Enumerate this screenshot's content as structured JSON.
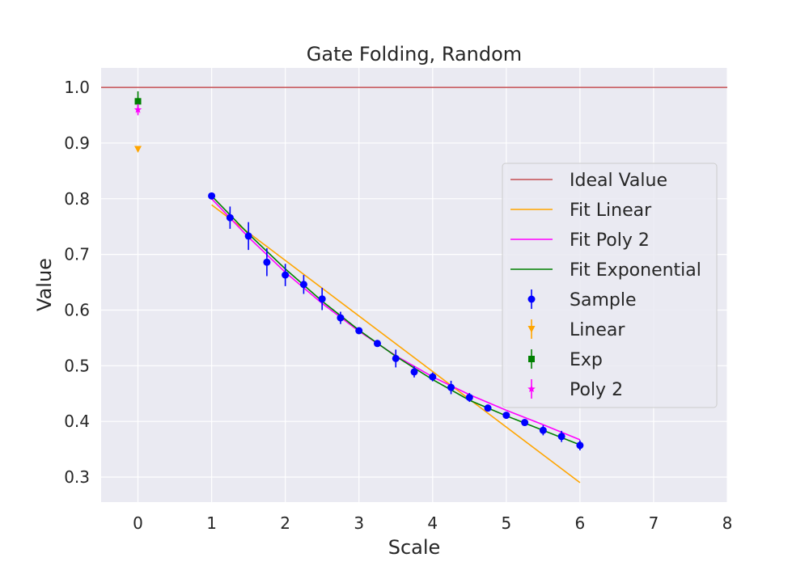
{
  "chart_data": {
    "type": "scatter",
    "title": "Gate Folding, Random",
    "xlabel": "Scale",
    "ylabel": "Value",
    "xlim": [
      -0.5,
      8
    ],
    "ylim": [
      0.255,
      1.035
    ],
    "xticks": [
      0,
      1,
      2,
      3,
      4,
      5,
      6,
      7,
      8
    ],
    "xtick_labels": [
      "0",
      "1",
      "2",
      "3",
      "4",
      "5",
      "6",
      "7",
      "8"
    ],
    "yticks": [
      0.3,
      0.4,
      0.5,
      0.6,
      0.7,
      0.8,
      0.9,
      1.0
    ],
    "ytick_labels": [
      "0.3",
      "0.4",
      "0.5",
      "0.6",
      "0.7",
      "0.8",
      "0.9",
      "1.0"
    ],
    "grid": true,
    "legend_position": "center-right",
    "ideal_value": {
      "name": "Ideal Value",
      "y": 1.0,
      "color": "#c44e52"
    },
    "fit_lines": [
      {
        "name": "Fit Linear",
        "color": "#ffa500",
        "x": [
          1,
          6
        ],
        "y": [
          0.789,
          0.29
        ]
      },
      {
        "name": "Fit Poly 2",
        "color": "#ff00ff",
        "x": [
          1,
          1.5,
          2,
          2.5,
          3,
          3.5,
          4,
          4.5,
          5,
          5.5,
          6
        ],
        "y": [
          0.8,
          0.731,
          0.668,
          0.612,
          0.562,
          0.518,
          0.48,
          0.448,
          0.42,
          0.394,
          0.367
        ]
      },
      {
        "name": "Fit Exponential",
        "color": "#008000",
        "x": [
          1,
          1.5,
          2,
          2.5,
          3,
          3.5,
          4,
          4.5,
          5,
          5.5,
          6
        ],
        "y": [
          0.805,
          0.737,
          0.674,
          0.616,
          0.564,
          0.517,
          0.475,
          0.438,
          0.41,
          0.384,
          0.358
        ]
      }
    ],
    "sample": {
      "name": "Sample",
      "color": "#0000ff",
      "x": [
        1,
        1.25,
        1.5,
        1.75,
        2,
        2.25,
        2.5,
        2.75,
        3,
        3.25,
        3.5,
        3.75,
        4,
        4.25,
        4.5,
        4.75,
        5,
        5.25,
        5.5,
        5.75,
        6
      ],
      "y": [
        0.805,
        0.766,
        0.733,
        0.686,
        0.663,
        0.646,
        0.62,
        0.586,
        0.563,
        0.54,
        0.513,
        0.489,
        0.48,
        0.461,
        0.443,
        0.424,
        0.411,
        0.398,
        0.384,
        0.373,
        0.357
      ],
      "err": [
        0.003,
        0.02,
        0.025,
        0.025,
        0.02,
        0.017,
        0.02,
        0.011,
        0.005,
        0.004,
        0.016,
        0.01,
        0.008,
        0.012,
        0.008,
        0.005,
        0.004,
        0.004,
        0.009,
        0.01,
        0.009
      ]
    },
    "extrapolations": [
      {
        "name": "Linear",
        "color": "#ffa500",
        "marker": "triangle-down",
        "x": 0,
        "y": 0.889,
        "err": 0.004
      },
      {
        "name": "Exp",
        "color": "#008000",
        "marker": "square",
        "x": 0,
        "y": 0.975,
        "err": 0.018
      },
      {
        "name": "Poly 2",
        "color": "#ff00ff",
        "marker": "star",
        "x": 0,
        "y": 0.96,
        "err": 0.01
      }
    ],
    "legend": [
      "Ideal Value",
      "Fit Linear",
      "Fit Poly 2",
      "Fit Exponential",
      "Sample",
      "Linear",
      "Exp",
      "Poly 2"
    ]
  }
}
